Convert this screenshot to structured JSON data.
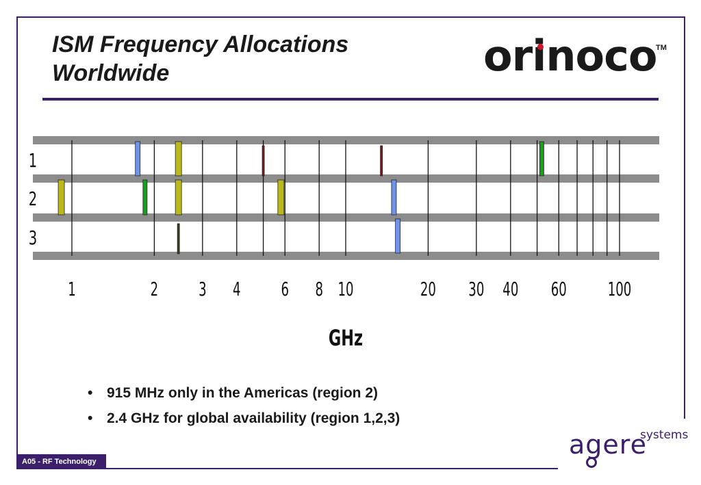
{
  "slide": {
    "title_line1": "ISM Frequency Allocations",
    "title_line2": "Worldwide",
    "logo_text": "orinoco",
    "logo_tm": "TM",
    "bullets": [
      "915 MHz only in the Americas (region 2)",
      "2.4 GHz for global availability  (region 1,2,3)"
    ],
    "footer_label": "A05 -  RF Technology",
    "brand_word": "agere",
    "brand_sub": "systems"
  },
  "colors": {
    "frame": "#3b1f6b",
    "band_rows": "#8c8c8c",
    "blue": "#6f93e8",
    "olive": "#b9b81c",
    "green": "#16a01e",
    "maroon": "#7a1a1a",
    "darkolive": "#3c4020"
  },
  "chart_data": {
    "type": "bar",
    "scale": "log",
    "xlabel": "GHz",
    "xlim": [
      0.8,
      130
    ],
    "ticks": [
      1,
      2,
      3,
      4,
      6,
      8,
      10,
      20,
      30,
      40,
      60,
      100
    ],
    "tick_labels": [
      "1",
      "2",
      "3",
      "4",
      "6",
      "8",
      "10",
      "20",
      "30",
      "40",
      "60",
      "100"
    ],
    "regions": [
      "1",
      "2",
      "3"
    ],
    "bands": [
      {
        "region": "1",
        "freq": 1.74,
        "color": "blue"
      },
      {
        "region": "1",
        "freq": 2.45,
        "color": "olive"
      },
      {
        "region": "1",
        "freq": 5.0,
        "color": "maroon"
      },
      {
        "region": "1",
        "freq": 13.5,
        "color": "maroon"
      },
      {
        "region": "1",
        "freq": 52.0,
        "color": "green"
      },
      {
        "region": "2",
        "freq": 0.915,
        "color": "olive"
      },
      {
        "region": "2",
        "freq": 1.85,
        "color": "green"
      },
      {
        "region": "2",
        "freq": 2.45,
        "color": "olive"
      },
      {
        "region": "2",
        "freq": 5.8,
        "color": "olive"
      },
      {
        "region": "2",
        "freq": 15.0,
        "color": "blue"
      },
      {
        "region": "3",
        "freq": 2.45,
        "color": "darkolive"
      },
      {
        "region": "3",
        "freq": 15.5,
        "color": "blue"
      }
    ]
  }
}
